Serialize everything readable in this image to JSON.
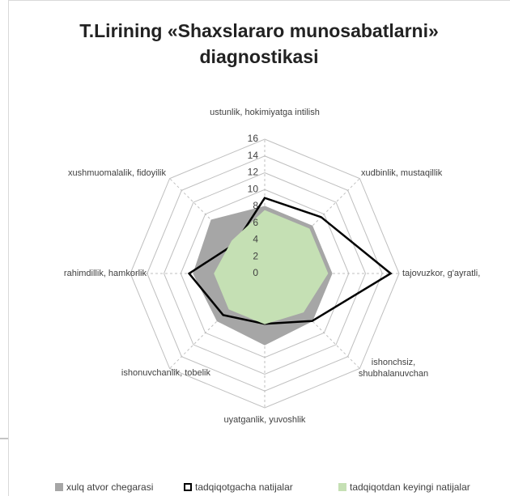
{
  "chart_data": {
    "type": "radar",
    "title": "T.Lirining «Shaxslararo munosabatlarni» diagnostikasi",
    "categories": [
      "ustunlik, hokimiyatga intilish",
      "xudbinlik, mustaqillik",
      "tajovuzkor, g'ayratli,",
      "ishonchsiz, shubhalanuvchan",
      "uyatganlik, yuvoshlik",
      "ishonuvchanlik, tobelik",
      "rahimdillik, hamkorlik",
      "xushmuomalalik, fidoyilik"
    ],
    "series": [
      {
        "name": "xulq atvor chegarasi",
        "color": "#a6a6a6",
        "fill": true,
        "values": [
          8,
          8,
          8,
          8,
          8.5,
          8,
          8.5,
          9
        ]
      },
      {
        "name": "tadqiqotgacha natijalar",
        "color": "#000000",
        "fill": false,
        "values": [
          9,
          9.5,
          15,
          8,
          6,
          7,
          9,
          5
        ]
      },
      {
        "name": "tadqiqotdan keyingi natijalar",
        "color": "#c5e0b4",
        "fill": true,
        "values": [
          7.5,
          7.5,
          7.5,
          6.5,
          6,
          6,
          6,
          5.5
        ]
      }
    ],
    "ylim": [
      0,
      16
    ],
    "yticks": [
      0,
      2,
      4,
      6,
      8,
      10,
      12,
      14,
      16
    ]
  }
}
